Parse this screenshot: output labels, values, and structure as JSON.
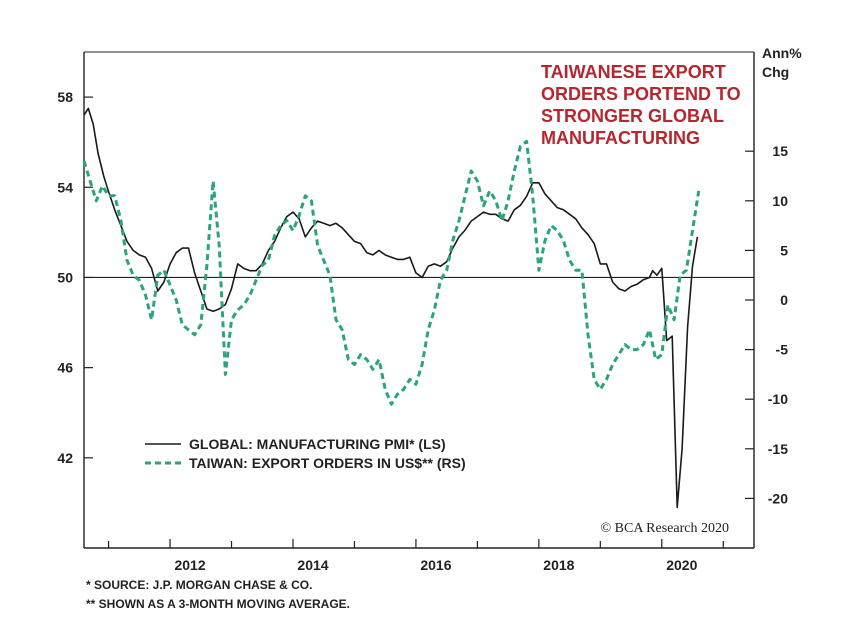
{
  "chart_data": {
    "type": "line",
    "title_lines": [
      "TAIWANESE EXPORT",
      "ORDERS PORTEND TO",
      "STRONGER GLOBAL",
      "MANUFACTURING"
    ],
    "title_color": "#b5262e",
    "right_axis_unit": [
      "Ann%",
      "Chg"
    ],
    "credit": "© BCA Research 2020",
    "left_axis": {
      "ylim": [
        38,
        60
      ],
      "ticks": [
        42,
        46,
        50,
        54,
        58
      ]
    },
    "right_axis": {
      "ylim": [
        -25,
        25
      ],
      "ticks": [
        -20,
        -15,
        -10,
        -5,
        0,
        5,
        10,
        15
      ]
    },
    "x_axis": {
      "xlim": [
        2010.6,
        2021.5
      ],
      "ticks": [
        2012,
        2014,
        2016,
        2018,
        2020
      ],
      "tick_labels": [
        "2012",
        "2014",
        "2016",
        "2018",
        "2020"
      ]
    },
    "zero_line": {
      "left_value": 50,
      "right_value": 0
    },
    "legend": {
      "position": "lower-left",
      "entries": [
        {
          "label": "GLOBAL: MANUFACTURING PMI* (LS)",
          "style": "solid",
          "color": "#1a1a1a"
        },
        {
          "label": "TAIWAN: EXPORT ORDERS IN US$** (RS)",
          "style": "dashed",
          "color": "#2aa57a"
        }
      ]
    },
    "series": [
      {
        "name": "GLOBAL: MANUFACTURING PMI* (LS)",
        "axis": "left",
        "color": "#1a1a1a",
        "style": "solid",
        "points": [
          [
            2010.6,
            57.2
          ],
          [
            2010.67,
            57.5
          ],
          [
            2010.75,
            56.8
          ],
          [
            2010.83,
            55.5
          ],
          [
            2010.92,
            54.5
          ],
          [
            2011.0,
            53.8
          ],
          [
            2011.1,
            53.0
          ],
          [
            2011.2,
            52.3
          ],
          [
            2011.3,
            51.6
          ],
          [
            2011.4,
            51.2
          ],
          [
            2011.5,
            51.0
          ],
          [
            2011.6,
            50.9
          ],
          [
            2011.7,
            50.4
          ],
          [
            2011.8,
            49.4
          ],
          [
            2011.9,
            49.8
          ],
          [
            2012.0,
            50.6
          ],
          [
            2012.1,
            51.1
          ],
          [
            2012.2,
            51.3
          ],
          [
            2012.3,
            51.3
          ],
          [
            2012.4,
            50.2
          ],
          [
            2012.5,
            49.4
          ],
          [
            2012.6,
            48.6
          ],
          [
            2012.7,
            48.5
          ],
          [
            2012.8,
            48.6
          ],
          [
            2012.9,
            48.8
          ],
          [
            2013.0,
            49.5
          ],
          [
            2013.1,
            50.6
          ],
          [
            2013.2,
            50.4
          ],
          [
            2013.3,
            50.3
          ],
          [
            2013.4,
            50.3
          ],
          [
            2013.5,
            50.6
          ],
          [
            2013.6,
            51.2
          ],
          [
            2013.7,
            51.6
          ],
          [
            2013.8,
            52.2
          ],
          [
            2013.9,
            52.7
          ],
          [
            2014.0,
            52.9
          ],
          [
            2014.1,
            52.6
          ],
          [
            2014.2,
            51.8
          ],
          [
            2014.3,
            52.2
          ],
          [
            2014.4,
            52.5
          ],
          [
            2014.5,
            52.4
          ],
          [
            2014.6,
            52.3
          ],
          [
            2014.7,
            52.4
          ],
          [
            2014.8,
            52.2
          ],
          [
            2014.9,
            51.9
          ],
          [
            2015.0,
            51.6
          ],
          [
            2015.1,
            51.5
          ],
          [
            2015.2,
            51.1
          ],
          [
            2015.3,
            51.0
          ],
          [
            2015.4,
            51.2
          ],
          [
            2015.5,
            51.0
          ],
          [
            2015.6,
            50.9
          ],
          [
            2015.7,
            50.8
          ],
          [
            2015.8,
            50.8
          ],
          [
            2015.9,
            50.9
          ],
          [
            2016.0,
            50.2
          ],
          [
            2016.1,
            50.0
          ],
          [
            2016.2,
            50.5
          ],
          [
            2016.3,
            50.6
          ],
          [
            2016.4,
            50.5
          ],
          [
            2016.5,
            50.7
          ],
          [
            2016.6,
            51.3
          ],
          [
            2016.7,
            51.8
          ],
          [
            2016.8,
            52.1
          ],
          [
            2016.9,
            52.5
          ],
          [
            2017.0,
            52.7
          ],
          [
            2017.1,
            52.9
          ],
          [
            2017.2,
            52.8
          ],
          [
            2017.3,
            52.8
          ],
          [
            2017.4,
            52.6
          ],
          [
            2017.5,
            52.5
          ],
          [
            2017.6,
            53.0
          ],
          [
            2017.7,
            53.2
          ],
          [
            2017.8,
            53.6
          ],
          [
            2017.9,
            54.2
          ],
          [
            2018.0,
            54.2
          ],
          [
            2018.1,
            53.7
          ],
          [
            2018.2,
            53.4
          ],
          [
            2018.3,
            53.1
          ],
          [
            2018.4,
            53.0
          ],
          [
            2018.5,
            52.8
          ],
          [
            2018.6,
            52.6
          ],
          [
            2018.7,
            52.2
          ],
          [
            2018.8,
            51.9
          ],
          [
            2018.9,
            51.5
          ],
          [
            2019.0,
            50.6
          ],
          [
            2019.1,
            50.6
          ],
          [
            2019.2,
            49.8
          ],
          [
            2019.3,
            49.5
          ],
          [
            2019.4,
            49.4
          ],
          [
            2019.5,
            49.6
          ],
          [
            2019.6,
            49.7
          ],
          [
            2019.7,
            49.9
          ],
          [
            2019.8,
            50.0
          ],
          [
            2019.85,
            50.3
          ],
          [
            2019.92,
            50.1
          ],
          [
            2020.0,
            50.4
          ],
          [
            2020.08,
            47.2
          ],
          [
            2020.17,
            47.4
          ],
          [
            2020.25,
            39.8
          ],
          [
            2020.33,
            42.4
          ],
          [
            2020.42,
            47.8
          ],
          [
            2020.5,
            50.5
          ],
          [
            2020.58,
            51.8
          ]
        ]
      },
      {
        "name": "TAIWAN: EXPORT ORDERS IN US$** (RS)",
        "axis": "right",
        "color": "#2aa57a",
        "style": "dashed",
        "points": [
          [
            2010.6,
            14.0
          ],
          [
            2010.7,
            12.0
          ],
          [
            2010.8,
            10.0
          ],
          [
            2010.9,
            11.5
          ],
          [
            2011.0,
            10.5
          ],
          [
            2011.1,
            10.5
          ],
          [
            2011.2,
            8.0
          ],
          [
            2011.3,
            4.0
          ],
          [
            2011.4,
            2.5
          ],
          [
            2011.5,
            2.0
          ],
          [
            2011.6,
            0.5
          ],
          [
            2011.7,
            -2.0
          ],
          [
            2011.8,
            2.5
          ],
          [
            2011.9,
            3.0
          ],
          [
            2012.0,
            1.5
          ],
          [
            2012.1,
            0.0
          ],
          [
            2012.2,
            -2.5
          ],
          [
            2012.3,
            -3.0
          ],
          [
            2012.4,
            -3.5
          ],
          [
            2012.5,
            -2.5
          ],
          [
            2012.6,
            3.5
          ],
          [
            2012.7,
            12.0
          ],
          [
            2012.8,
            5.5
          ],
          [
            2012.9,
            -7.5
          ],
          [
            2013.0,
            -2.0
          ],
          [
            2013.1,
            -1.0
          ],
          [
            2013.2,
            -0.5
          ],
          [
            2013.3,
            0.5
          ],
          [
            2013.4,
            2.0
          ],
          [
            2013.5,
            3.5
          ],
          [
            2013.6,
            4.0
          ],
          [
            2013.7,
            6.5
          ],
          [
            2013.8,
            7.5
          ],
          [
            2013.9,
            8.0
          ],
          [
            2014.0,
            7.0
          ],
          [
            2014.1,
            8.5
          ],
          [
            2014.2,
            10.5
          ],
          [
            2014.3,
            10.0
          ],
          [
            2014.4,
            5.5
          ],
          [
            2014.5,
            4.0
          ],
          [
            2014.6,
            2.5
          ],
          [
            2014.7,
            -2.0
          ],
          [
            2014.8,
            -3.0
          ],
          [
            2014.9,
            -6.0
          ],
          [
            2015.0,
            -6.5
          ],
          [
            2015.1,
            -5.5
          ],
          [
            2015.2,
            -6.0
          ],
          [
            2015.3,
            -7.0
          ],
          [
            2015.4,
            -6.0
          ],
          [
            2015.5,
            -9.0
          ],
          [
            2015.6,
            -10.5
          ],
          [
            2015.7,
            -9.5
          ],
          [
            2015.8,
            -9.0
          ],
          [
            2015.9,
            -8.0
          ],
          [
            2016.0,
            -8.5
          ],
          [
            2016.1,
            -6.5
          ],
          [
            2016.2,
            -3.0
          ],
          [
            2016.3,
            -1.0
          ],
          [
            2016.4,
            2.0
          ],
          [
            2016.5,
            3.0
          ],
          [
            2016.6,
            6.0
          ],
          [
            2016.7,
            8.0
          ],
          [
            2016.8,
            10.5
          ],
          [
            2016.9,
            13.0
          ],
          [
            2017.0,
            12.0
          ],
          [
            2017.1,
            9.5
          ],
          [
            2017.2,
            11.0
          ],
          [
            2017.3,
            10.0
          ],
          [
            2017.4,
            8.0
          ],
          [
            2017.5,
            10.0
          ],
          [
            2017.6,
            13.0
          ],
          [
            2017.7,
            15.5
          ],
          [
            2017.8,
            16.0
          ],
          [
            2017.9,
            10.5
          ],
          [
            2018.0,
            3.0
          ],
          [
            2018.1,
            6.0
          ],
          [
            2018.2,
            7.5
          ],
          [
            2018.3,
            7.0
          ],
          [
            2018.4,
            6.0
          ],
          [
            2018.5,
            4.0
          ],
          [
            2018.6,
            3.0
          ],
          [
            2018.7,
            3.0
          ],
          [
            2018.8,
            -3.5
          ],
          [
            2018.9,
            -8.0
          ],
          [
            2019.0,
            -9.0
          ],
          [
            2019.1,
            -8.0
          ],
          [
            2019.2,
            -6.5
          ],
          [
            2019.3,
            -5.5
          ],
          [
            2019.4,
            -4.5
          ],
          [
            2019.5,
            -5.0
          ],
          [
            2019.6,
            -5.0
          ],
          [
            2019.7,
            -4.5
          ],
          [
            2019.8,
            -3.0
          ],
          [
            2019.9,
            -6.0
          ],
          [
            2020.0,
            -5.5
          ],
          [
            2020.1,
            -0.5
          ],
          [
            2020.2,
            -2.0
          ],
          [
            2020.3,
            2.5
          ],
          [
            2020.4,
            3.0
          ],
          [
            2020.5,
            7.0
          ],
          [
            2020.6,
            11.0
          ]
        ]
      }
    ]
  },
  "footnotes": [
    "*  SOURCE: J.P. MORGAN CHASE & CO.",
    "** SHOWN AS A 3-MONTH MOVING AVERAGE."
  ]
}
